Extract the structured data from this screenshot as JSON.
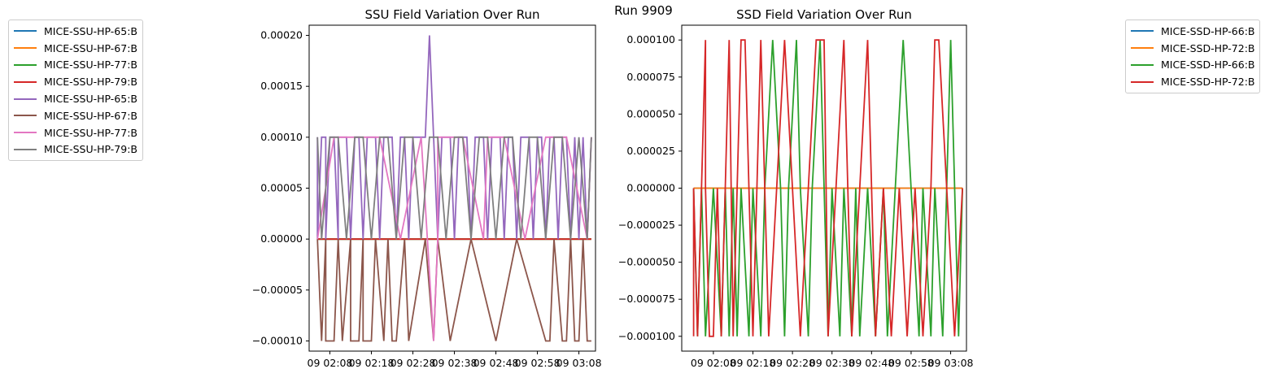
{
  "suptitle": "Run 9909",
  "legend_left": [
    {
      "label": "MICE-SSU-HP-65:B",
      "color": "#1f77b4"
    },
    {
      "label": "MICE-SSU-HP-67:B",
      "color": "#ff7f0e"
    },
    {
      "label": "MICE-SSU-HP-77:B",
      "color": "#2ca02c"
    },
    {
      "label": "MICE-SSU-HP-79:B",
      "color": "#d62728"
    },
    {
      "label": "MICE-SSU-HP-65:B",
      "color": "#9467bd"
    },
    {
      "label": "MICE-SSU-HP-67:B",
      "color": "#8c564b"
    },
    {
      "label": "MICE-SSU-HP-77:B",
      "color": "#e377c2"
    },
    {
      "label": "MICE-SSU-HP-79:B",
      "color": "#7f7f7f"
    }
  ],
  "legend_right": [
    {
      "label": "MICE-SSD-HP-66:B",
      "color": "#1f77b4"
    },
    {
      "label": "MICE-SSD-HP-72:B",
      "color": "#ff7f0e"
    },
    {
      "label": "MICE-SSD-HP-66:B",
      "color": "#2ca02c"
    },
    {
      "label": "MICE-SSD-HP-72:B",
      "color": "#d62728"
    }
  ],
  "chart_data": [
    {
      "type": "line",
      "title": "SSU Field Variation Over Run",
      "xlabel": "",
      "ylabel": "",
      "ylim": [
        -0.00011,
        0.00021
      ],
      "yticks": [
        "0.00020",
        "0.00015",
        "0.00010",
        "0.00005",
        "0.00000",
        "−0.00005",
        "−0.00010"
      ],
      "ytick_values": [
        0.0002,
        0.00015,
        0.0001,
        5e-05,
        0.0,
        -5e-05,
        -0.0001
      ],
      "xticks": [
        "09 02:08",
        "09 02:18",
        "09 02:28",
        "09 02:38",
        "09 02:48",
        "09 02:58",
        "09 03:08"
      ],
      "xlim": [
        "09 02:03",
        "09 03:12"
      ],
      "grid": false,
      "legend_placement": "outside-left",
      "series": [
        {
          "name": "MICE-SSU-HP-65:B",
          "color": "#1f77b4",
          "x": [
            "09 02:05",
            "09 02:30",
            "09 02:55",
            "09 03:11"
          ],
          "values": [
            0.0,
            0.0,
            0.0,
            0.0
          ]
        },
        {
          "name": "MICE-SSU-HP-67:B",
          "color": "#ff7f0e",
          "x": [
            "09 02:05",
            "09 02:30",
            "09 02:55",
            "09 03:11"
          ],
          "values": [
            0.0,
            0.0,
            0.0,
            0.0
          ]
        },
        {
          "name": "MICE-SSU-HP-77:B",
          "color": "#2ca02c",
          "x": [
            "09 02:05",
            "09 02:30",
            "09 02:55",
            "09 03:11"
          ],
          "values": [
            0.0,
            0.0,
            0.0,
            0.0
          ]
        },
        {
          "name": "MICE-SSU-HP-79:B",
          "color": "#d62728",
          "x": [
            "09 02:05",
            "09 02:30",
            "09 02:55",
            "09 03:11"
          ],
          "values": [
            0.0,
            0.0,
            0.0,
            0.0
          ]
        },
        {
          "name": "MICE-SSU-HP-65:B",
          "color": "#9467bd",
          "x": [
            "09 02:05",
            "09 02:05",
            "09 02:06",
            "09 02:07",
            "09 02:07",
            "09 02:08",
            "09 02:09",
            "09 02:10",
            "09 02:10",
            "09 02:11",
            "09 02:12",
            "09 02:13",
            "09 02:14",
            "09 02:15",
            "09 02:15",
            "09 02:16",
            "09 02:17",
            "09 02:18",
            "09 02:19",
            "09 02:20",
            "09 02:21",
            "09 02:22",
            "09 02:23",
            "09 02:24",
            "09 02:25",
            "09 02:26",
            "09 02:27",
            "09 02:28",
            "09 02:29",
            "09 02:30",
            "09 02:31",
            "09 02:32",
            "09 02:33",
            "09 02:34",
            "09 02:35",
            "09 02:35",
            "09 02:36",
            "09 02:37",
            "09 02:38",
            "09 02:39",
            "09 02:40",
            "09 02:41",
            "09 02:42",
            "09 02:43",
            "09 02:44",
            "09 02:45",
            "09 02:46",
            "09 02:47",
            "09 02:48",
            "09 02:49",
            "09 02:50",
            "09 02:51",
            "09 02:52",
            "09 02:53",
            "09 02:54",
            "09 02:55",
            "09 02:56",
            "09 02:57",
            "09 02:58",
            "09 02:59",
            "09 03:00",
            "09 03:01",
            "09 03:02",
            "09 03:03",
            "09 03:04",
            "09 03:05",
            "09 03:06",
            "09 03:07",
            "09 03:08",
            "09 03:09",
            "09 03:10",
            "09 03:11"
          ],
          "values": [
            0.0001,
            0.0,
            0.0001,
            0.0001,
            0.0,
            0.0001,
            0.0001,
            0.0,
            0.0001,
            0.0001,
            0.0001,
            0.0,
            0.0001,
            0.0001,
            0.0001,
            0.0,
            0.0001,
            0.0001,
            0.0001,
            0.0,
            0.0001,
            0.0001,
            0.0001,
            0.0,
            0.0001,
            0.0001,
            0.0,
            0.0001,
            0.0001,
            0.0001,
            0.0001,
            0.0002,
            0.0001,
            0.0,
            0.0001,
            0.0001,
            0.0001,
            0.0001,
            0.0,
            0.0001,
            0.0001,
            0.0001,
            0.0,
            0.0001,
            0.0001,
            0.0001,
            0.0,
            0.0001,
            0.0001,
            0.0001,
            0.0,
            0.0001,
            0.0001,
            0.0,
            0.0001,
            0.0001,
            0.0001,
            0.0,
            0.0001,
            0.0001,
            0.0,
            0.0001,
            0.0001,
            0.0,
            0.0001,
            0.0001,
            0.0,
            0.0001,
            0.0,
            0.0001,
            0.0,
            0.0001
          ]
        },
        {
          "name": "MICE-SSU-HP-67:B",
          "color": "#8c564b",
          "x": [
            "09 02:05",
            "09 02:06",
            "09 02:07",
            "09 02:07",
            "09 02:09",
            "09 02:10",
            "09 02:11",
            "09 02:11",
            "09 02:13",
            "09 02:13",
            "09 02:15",
            "09 02:16",
            "09 02:16",
            "09 02:18",
            "09 02:19",
            "09 02:21",
            "09 02:22",
            "09 02:23",
            "09 02:24",
            "09 02:26",
            "09 02:27",
            "09 02:31",
            "09 02:33",
            "09 02:34",
            "09 02:37",
            "09 02:42",
            "09 02:48",
            "09 02:53",
            "09 03:00",
            "09 03:01",
            "09 03:02",
            "09 03:04",
            "09 03:05",
            "09 03:06",
            "09 03:07",
            "09 03:08",
            "09 03:09",
            "09 03:10",
            "09 03:11"
          ],
          "values": [
            0.0,
            -0.0001,
            0.0,
            -0.0001,
            -0.0001,
            0.0,
            -0.0001,
            -0.0001,
            0.0,
            -0.0001,
            -0.0001,
            0.0,
            -0.0001,
            -0.0001,
            0.0,
            -0.0001,
            0.0,
            -0.0001,
            -0.0001,
            0.0,
            -0.0001,
            0.0,
            -0.0001,
            0.0,
            -0.0001,
            0.0,
            -0.0001,
            0.0,
            -0.0001,
            -0.0001,
            0.0,
            -0.0001,
            -0.0001,
            0.0,
            -0.0001,
            -0.0001,
            0.0,
            -0.0001,
            -0.0001
          ]
        },
        {
          "name": "MICE-SSU-HP-77:B",
          "color": "#e377c2",
          "x": [
            "09 02:05",
            "09 02:09",
            "09 02:14",
            "09 02:20",
            "09 02:25",
            "09 02:30",
            "09 02:33",
            "09 02:34",
            "09 02:34",
            "09 02:40",
            "09 02:45",
            "09 02:46",
            "09 02:50",
            "09 02:55",
            "09 03:00",
            "09 03:05",
            "09 03:10",
            "09 03:11"
          ],
          "values": [
            0.0,
            0.0001,
            0.0001,
            0.0001,
            0.0,
            0.0001,
            -0.0001,
            0.0,
            0.0001,
            0.0001,
            0.0,
            0.0001,
            0.0001,
            0.0,
            0.0001,
            0.0001,
            0.0,
            0.0001
          ]
        },
        {
          "name": "MICE-SSU-HP-79:B",
          "color": "#7f7f7f",
          "x": [
            "09 02:05",
            "09 02:06",
            "09 02:08",
            "09 02:10",
            "09 02:12",
            "09 02:14",
            "09 02:16",
            "09 02:18",
            "09 02:20",
            "09 02:22",
            "09 02:24",
            "09 02:26",
            "09 02:28",
            "09 02:30",
            "09 02:32",
            "09 02:34",
            "09 02:36",
            "09 02:38",
            "09 02:40",
            "09 02:42",
            "09 02:44",
            "09 02:46",
            "09 02:48",
            "09 02:50",
            "09 02:52",
            "09 02:54",
            "09 02:56",
            "09 02:58",
            "09 03:00",
            "09 03:02",
            "09 03:04",
            "09 03:06",
            "09 03:08",
            "09 03:10",
            "09 03:11"
          ],
          "values": [
            0.0001,
            0.0,
            0.0001,
            0.0001,
            0.0,
            0.0001,
            0.0001,
            0.0,
            0.0001,
            0.0001,
            0.0,
            0.0001,
            0.0001,
            0.0,
            0.0001,
            0.0001,
            0.0,
            0.0001,
            0.0001,
            0.0,
            0.0001,
            0.0001,
            0.0,
            0.0001,
            0.0001,
            0.0,
            0.0001,
            0.0001,
            0.0,
            0.0001,
            0.0001,
            0.0,
            0.0001,
            0.0,
            0.0001
          ]
        }
      ]
    },
    {
      "type": "line",
      "title": "SSD Field Variation Over Run",
      "xlabel": "",
      "ylabel": "",
      "ylim": [
        -0.00011,
        0.00011
      ],
      "yticks": [
        "0.000100",
        "0.000075",
        "0.000050",
        "0.000025",
        "0.000000",
        "−0.000025",
        "−0.000050",
        "−0.000075",
        "−0.000100"
      ],
      "ytick_values": [
        0.0001,
        7.5e-05,
        5e-05,
        2.5e-05,
        0.0,
        -2.5e-05,
        -5e-05,
        -7.5e-05,
        -0.0001
      ],
      "xticks": [
        "09 02:08",
        "09 02:18",
        "09 02:28",
        "09 02:38",
        "09 02:48",
        "09 02:58",
        "09 03:08"
      ],
      "xlim": [
        "09 02:00",
        "09 03:12"
      ],
      "grid": false,
      "legend_placement": "outside-right",
      "series": [
        {
          "name": "MICE-SSD-HP-66:B",
          "color": "#1f77b4",
          "x": [
            "09 02:03",
            "09 02:30",
            "09 02:55",
            "09 03:11"
          ],
          "values": [
            0.0,
            0.0,
            0.0,
            0.0
          ]
        },
        {
          "name": "MICE-SSD-HP-72:B",
          "color": "#ff7f0e",
          "x": [
            "09 02:03",
            "09 02:30",
            "09 02:55",
            "09 03:11"
          ],
          "values": [
            0.0,
            0.0,
            0.0,
            0.0
          ]
        },
        {
          "name": "MICE-SSD-HP-66:B",
          "color": "#2ca02c",
          "x": [
            "09 02:03",
            "09 02:04",
            "09 02:05",
            "09 02:06",
            "09 02:08",
            "09 02:10",
            "09 02:11",
            "09 02:12",
            "09 02:13",
            "09 02:14",
            "09 02:15",
            "09 02:17",
            "09 02:18",
            "09 02:20",
            "09 02:21",
            "09 02:23",
            "09 02:25",
            "09 02:26",
            "09 02:27",
            "09 02:29",
            "09 02:30",
            "09 02:32",
            "09 02:33",
            "09 02:35",
            "09 02:36",
            "09 02:37",
            "09 02:38",
            "09 02:40",
            "09 02:41",
            "09 02:43",
            "09 02:44",
            "09 02:45",
            "09 02:47",
            "09 02:49",
            "09 02:51",
            "09 02:52",
            "09 02:54",
            "09 02:56",
            "09 02:58",
            "09 03:00",
            "09 03:01",
            "09 03:03",
            "09 03:04",
            "09 03:06",
            "09 03:07",
            "09 03:08",
            "09 03:10",
            "09 03:11"
          ],
          "values": [
            0.0,
            -0.0001,
            0.0,
            -0.0001,
            0.0,
            -0.0001,
            0.0,
            -0.0001,
            0.0,
            -0.0001,
            0.0,
            -0.0001,
            0.0,
            -0.0001,
            0.0,
            0.0001,
            0.0,
            -0.0001,
            0.0,
            0.0001,
            0.0,
            -0.0001,
            0.0,
            0.0001,
            0.0,
            -0.0001,
            0.0,
            -0.0001,
            0.0,
            -0.0001,
            0.0,
            -0.0001,
            0.0,
            -0.0001,
            0.0,
            -0.0001,
            0.0,
            0.0001,
            0.0,
            -0.0001,
            0.0,
            -0.0001,
            0.0,
            -0.0001,
            0.0,
            0.0001,
            -0.0001,
            0.0
          ]
        },
        {
          "name": "MICE-SSD-HP-72:B",
          "color": "#d62728",
          "x": [
            "09 02:03",
            "09 02:03",
            "09 02:04",
            "09 02:05",
            "09 02:06",
            "09 02:06",
            "09 02:07",
            "09 02:08",
            "09 02:09",
            "09 02:10",
            "09 02:11",
            "09 02:12",
            "09 02:13",
            "09 02:14",
            "09 02:15",
            "09 02:16",
            "09 02:17",
            "09 02:18",
            "09 02:19",
            "09 02:20",
            "09 02:22",
            "09 02:24",
            "09 02:26",
            "09 02:28",
            "09 02:30",
            "09 02:32",
            "09 02:34",
            "09 02:36",
            "09 02:37",
            "09 02:39",
            "09 02:41",
            "09 02:43",
            "09 02:45",
            "09 02:47",
            "09 02:49",
            "09 02:51",
            "09 02:53",
            "09 02:55",
            "09 02:57",
            "09 02:59",
            "09 03:01",
            "09 03:03",
            "09 03:04",
            "09 03:05",
            "09 03:07",
            "09 03:09",
            "09 03:11"
          ],
          "values": [
            -0.0001,
            0.0,
            -0.0001,
            0.0,
            0.0001,
            0.0,
            -0.0001,
            -0.0001,
            0.0,
            -0.0001,
            0.0,
            0.0001,
            -0.0001,
            0.0,
            0.0001,
            0.0001,
            0.0,
            -0.0001,
            0.0,
            0.0001,
            -0.0001,
            0.0,
            0.0001,
            0.0,
            -0.0001,
            0.0,
            0.0001,
            0.0001,
            -0.0001,
            0.0,
            0.0001,
            -0.0001,
            0.0,
            0.0001,
            -0.0001,
            0.0,
            -0.0001,
            0.0,
            -0.0001,
            0.0,
            -0.0001,
            0.0,
            0.0001,
            0.0001,
            0.0,
            -0.0001,
            0.0
          ]
        }
      ]
    }
  ]
}
